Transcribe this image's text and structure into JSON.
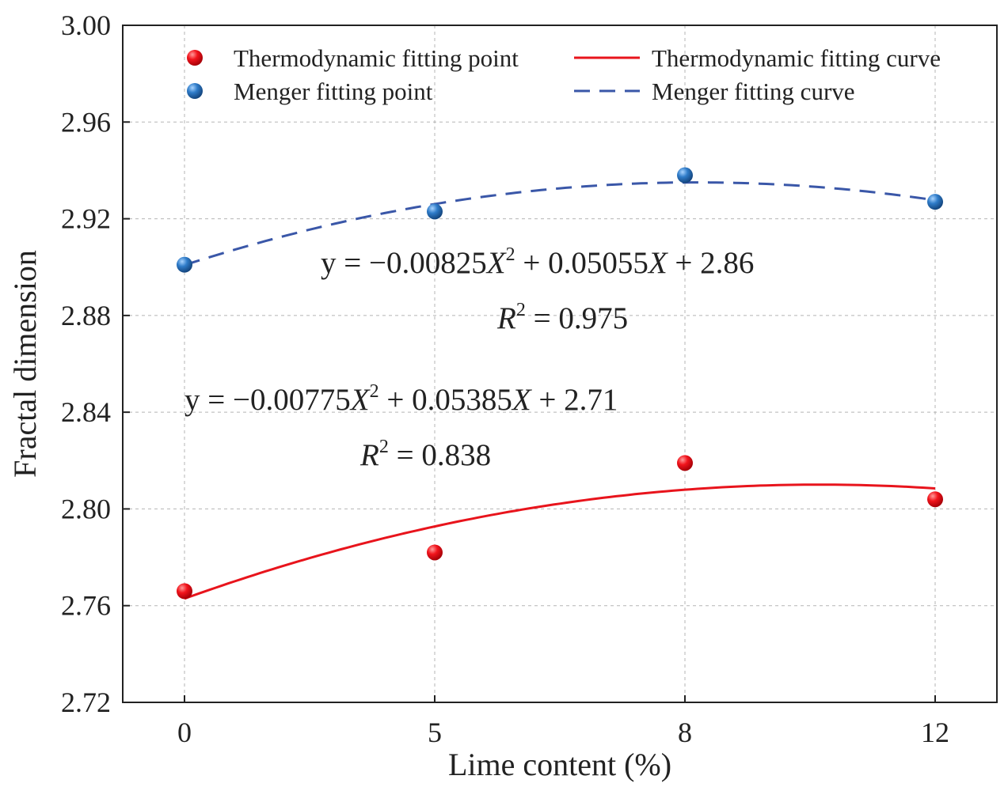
{
  "chart_data": {
    "type": "scatter",
    "xlabel": "Lime content (%)",
    "ylabel": "Fractal dimension",
    "categories": [
      "0",
      "5",
      "8",
      "12"
    ],
    "ylim": [
      2.72,
      3.0
    ],
    "yticks": [
      "2.72",
      "2.76",
      "2.80",
      "2.84",
      "2.88",
      "2.92",
      "2.96",
      "3.00"
    ],
    "grid": true,
    "legend_position": "top",
    "series": [
      {
        "name": "Thermodynamic fitting point",
        "kind": "points",
        "color": "#e8141c",
        "values": [
          2.766,
          2.782,
          2.819,
          2.804
        ]
      },
      {
        "name": "Menger fitting point",
        "kind": "points",
        "color": "#2f6db5",
        "values": [
          2.901,
          2.923,
          2.938,
          2.927
        ]
      },
      {
        "name": "Thermodynamic fitting curve",
        "kind": "curve",
        "style": "solid",
        "color": "#e8141c",
        "fit": {
          "a": -0.00775,
          "b": 0.05385,
          "c": 2.71
        },
        "values": [
          2.763,
          2.7925,
          2.8082,
          2.8084
        ]
      },
      {
        "name": "Menger fitting curve",
        "kind": "curve",
        "style": "dashed",
        "color": "#3a57a8",
        "fit": {
          "a": -0.00825,
          "b": 0.05055,
          "c": 2.86
        },
        "values": [
          2.901,
          2.9256,
          2.9355,
          2.9275
        ]
      }
    ],
    "annotations": {
      "menger_eq": {
        "prefix": "y = −0.00825",
        "var": "X",
        "exp": "2",
        "rest": " + 0.05055",
        "var2": "X",
        "tail": " + 2.86"
      },
      "menger_r2": {
        "var": "R",
        "exp": "2",
        "value": " = 0.975"
      },
      "thermo_eq": {
        "prefix": "y = −0.00775",
        "var": "X",
        "exp": "2",
        "rest": " + 0.05385",
        "var2": "X",
        "tail": " + 2.71"
      },
      "thermo_r2": {
        "var": "R",
        "exp": "2",
        "value": " = 0.838"
      }
    }
  }
}
